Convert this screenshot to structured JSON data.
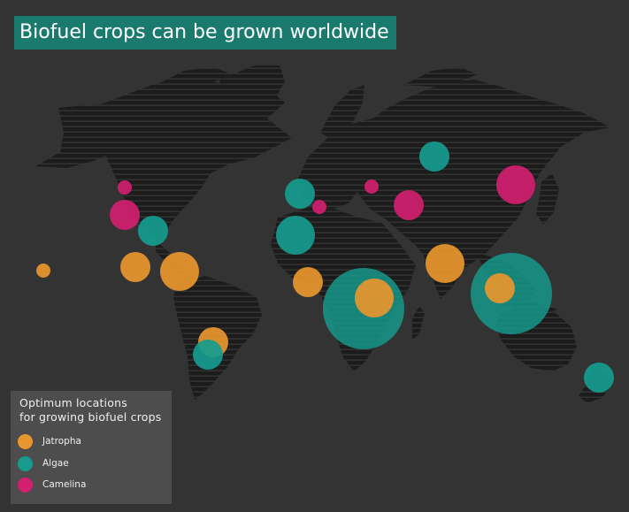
{
  "title": "Biofuel crops can be grown worldwide",
  "legend": {
    "title_line1": "Optimum locations",
    "title_line2": "for growing biofuel crops",
    "items": [
      {
        "label": "Jatropha",
        "color": "#e8962e"
      },
      {
        "label": "Algae",
        "color": "#169b8e"
      },
      {
        "label": "Camelina",
        "color": "#d0206f"
      }
    ]
  },
  "colors": {
    "background": "#333333",
    "land": "#1c1c1c",
    "land_stripe": "#3a3a3a",
    "title_bg": "#1a7a6e",
    "legend_bg": "#4d4d4d"
  },
  "locations": [
    {
      "crop": "Camelina",
      "region": "Western Canada",
      "size": "small"
    },
    {
      "crop": "Camelina",
      "region": "Central United States",
      "size": "medium"
    },
    {
      "crop": "Algae",
      "region": "Southeastern United States",
      "size": "medium"
    },
    {
      "crop": "Jatropha",
      "region": "Hawaii",
      "size": "small"
    },
    {
      "crop": "Jatropha",
      "region": "Mexico",
      "size": "medium"
    },
    {
      "crop": "Jatropha",
      "region": "Central America",
      "size": "large"
    },
    {
      "crop": "Jatropha",
      "region": "Southern Brazil",
      "size": "medium"
    },
    {
      "crop": "Algae",
      "region": "Southern Brazil",
      "size": "medium"
    },
    {
      "crop": "Algae",
      "region": "Western Europe",
      "size": "medium"
    },
    {
      "crop": "Camelina",
      "region": "Southern Europe",
      "size": "small"
    },
    {
      "crop": "Algae",
      "region": "North Africa",
      "size": "large"
    },
    {
      "crop": "Jatropha",
      "region": "West Africa",
      "size": "medium"
    },
    {
      "crop": "Algae",
      "region": "Central Africa",
      "size": "extra-large"
    },
    {
      "crop": "Jatropha",
      "region": "East Africa",
      "size": "large"
    },
    {
      "crop": "Camelina",
      "region": "Eastern Europe",
      "size": "small"
    },
    {
      "crop": "Camelina",
      "region": "Central Asia",
      "size": "medium"
    },
    {
      "crop": "Algae",
      "region": "Northern Russia",
      "size": "medium"
    },
    {
      "crop": "Camelina",
      "region": "China",
      "size": "large"
    },
    {
      "crop": "Jatropha",
      "region": "India",
      "size": "large"
    },
    {
      "crop": "Algae",
      "region": "Southeast Asia",
      "size": "extra-large"
    },
    {
      "crop": "Jatropha",
      "region": "Southeast Asia",
      "size": "medium"
    },
    {
      "crop": "Algae",
      "region": "New Zealand",
      "size": "medium"
    }
  ]
}
